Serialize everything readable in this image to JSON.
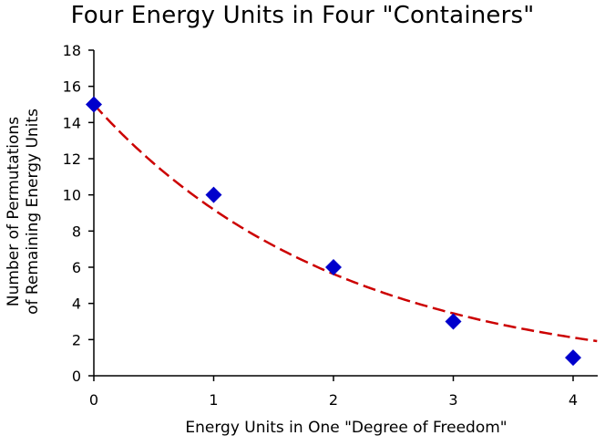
{
  "chart_data": {
    "type": "scatter",
    "title": "Four Energy Units in Four \"Containers\"",
    "xlabel": "Energy Units in One \"Degree of Freedom\"",
    "ylabel_lines": [
      "Number of Permutations",
      "of Remaining Energy Units"
    ],
    "xlim": [
      0,
      4.2
    ],
    "ylim": [
      0,
      18
    ],
    "x_ticks": [
      0,
      1,
      2,
      3,
      4
    ],
    "y_ticks": [
      0,
      2,
      4,
      6,
      8,
      10,
      12,
      14,
      16,
      18
    ],
    "grid": false,
    "legend": "none",
    "series": [
      {
        "marker": "diamond",
        "color": "#0000cc",
        "x": [
          0,
          1,
          2,
          3,
          4
        ],
        "y": [
          15,
          10,
          6,
          3,
          1
        ]
      }
    ],
    "trendline": {
      "type": "exponential",
      "style": "dashed",
      "color": "#cc0000",
      "a": 15,
      "b": -0.49,
      "x_range": [
        0,
        4.2
      ]
    }
  }
}
